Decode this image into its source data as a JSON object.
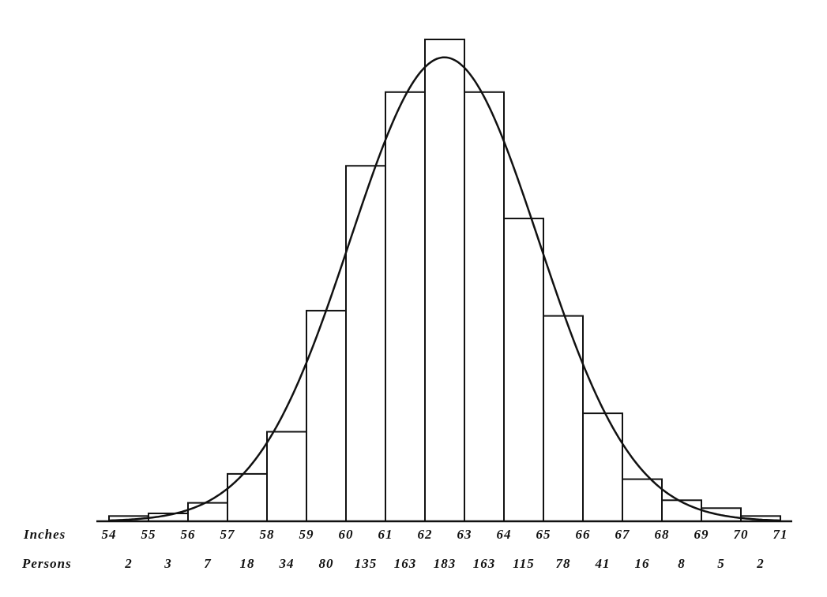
{
  "chart_data": {
    "type": "histogram",
    "x_label": "Inches",
    "count_label": "Persons",
    "bins": [
      54,
      55,
      56,
      57,
      58,
      59,
      60,
      61,
      62,
      63,
      64,
      65,
      66,
      67,
      68,
      69,
      70,
      71
    ],
    "counts": [
      2,
      3,
      7,
      18,
      34,
      80,
      135,
      163,
      183,
      163,
      115,
      78,
      41,
      16,
      8,
      5,
      2
    ],
    "color": "#111111"
  }
}
